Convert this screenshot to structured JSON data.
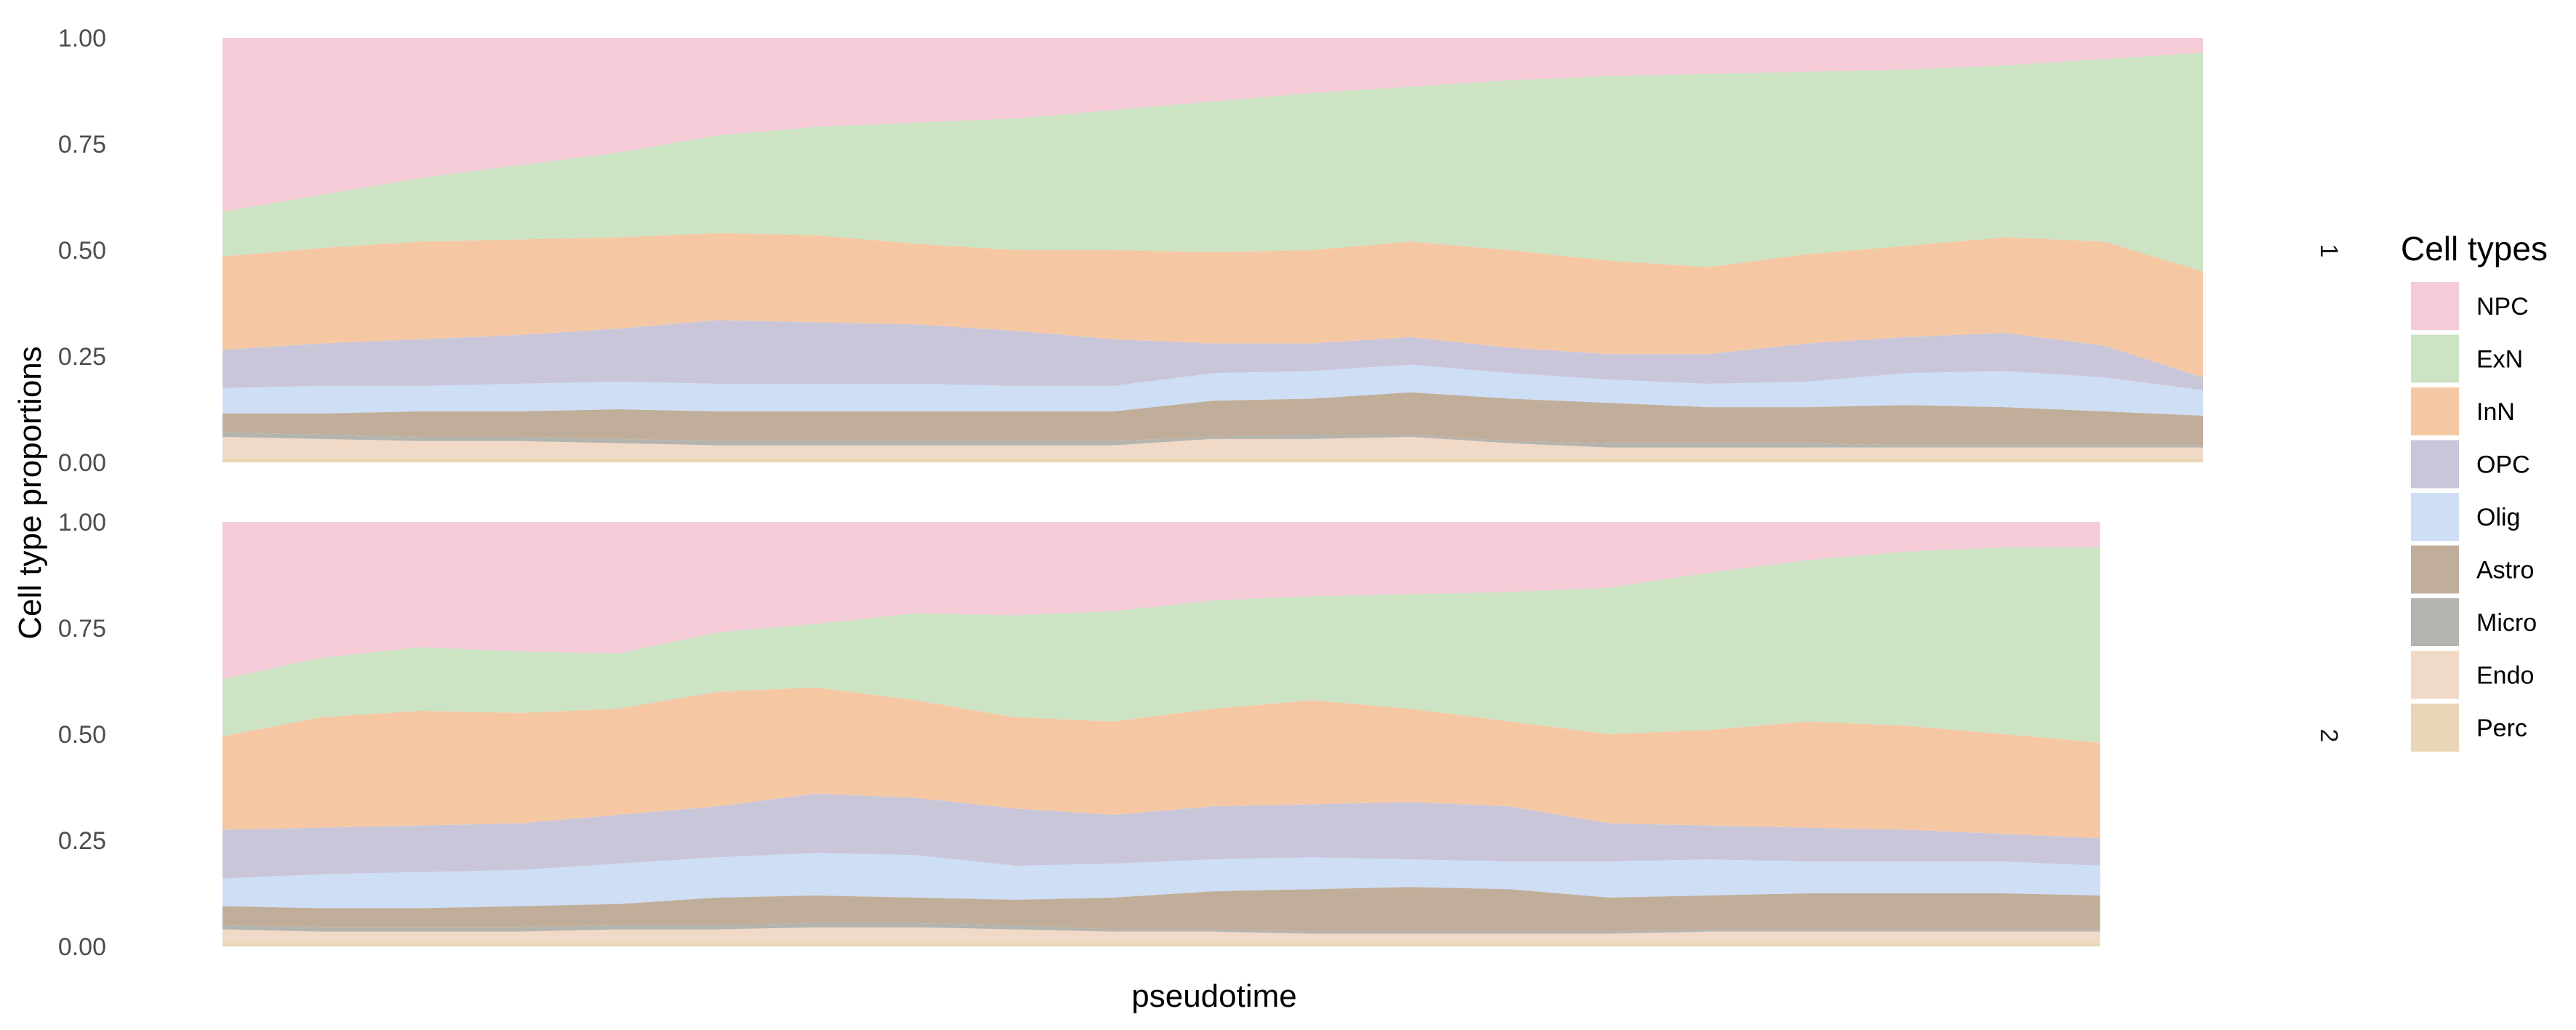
{
  "chart_data": {
    "type": "area",
    "stacking": "proportion",
    "x_axis_label": "pseudotime",
    "y_axis_label": "Cell type proportions",
    "y_range": [
      0,
      1
    ],
    "y_ticks": [
      "0.00",
      "0.25",
      "0.50",
      "0.75",
      "1.00"
    ],
    "legend": {
      "title": "Cell types",
      "placement": "right",
      "entries": [
        {
          "name": "NPC",
          "color": "#f4cbd7"
        },
        {
          "name": "ExN",
          "color": "#cce3c4"
        },
        {
          "name": "InN",
          "color": "#f5c8a3"
        },
        {
          "name": "OPC",
          "color": "#cac6da"
        },
        {
          "name": "Olig",
          "color": "#cddef5"
        },
        {
          "name": "Astro",
          "color": "#c1ae9a"
        },
        {
          "name": "Micro",
          "color": "#b4b4ae"
        },
        {
          "name": "Endo",
          "color": "#f0d9c6"
        },
        {
          "name": "Perc",
          "color": "#e8d6b6"
        }
      ]
    },
    "panels": [
      {
        "strip_label": "1",
        "x_extent": [
          0,
          1
        ],
        "x": [
          0,
          0.05,
          0.1,
          0.15,
          0.2,
          0.25,
          0.3,
          0.35,
          0.4,
          0.45,
          0.5,
          0.55,
          0.6,
          0.65,
          0.7,
          0.75,
          0.8,
          0.85,
          0.9,
          0.95,
          1.0
        ],
        "boundaries": {
          "Perc": [
            0.01,
            0.01,
            0.01,
            0.01,
            0.01,
            0.01,
            0.01,
            0.01,
            0.01,
            0.01,
            0.01,
            0.01,
            0.01,
            0.01,
            0.01,
            0.01,
            0.01,
            0.01,
            0.01,
            0.01,
            0.01
          ],
          "Endo": [
            0.06,
            0.055,
            0.05,
            0.05,
            0.045,
            0.04,
            0.04,
            0.04,
            0.04,
            0.04,
            0.055,
            0.055,
            0.06,
            0.045,
            0.035,
            0.035,
            0.035,
            0.035,
            0.035,
            0.035,
            0.035
          ],
          "Micro": [
            0.07,
            0.065,
            0.06,
            0.06,
            0.055,
            0.05,
            0.05,
            0.05,
            0.05,
            0.05,
            0.06,
            0.065,
            0.065,
            0.05,
            0.045,
            0.045,
            0.045,
            0.04,
            0.04,
            0.04,
            0.04
          ],
          "Astro": [
            0.115,
            0.115,
            0.12,
            0.12,
            0.125,
            0.12,
            0.12,
            0.12,
            0.12,
            0.12,
            0.145,
            0.15,
            0.165,
            0.15,
            0.14,
            0.13,
            0.13,
            0.135,
            0.13,
            0.12,
            0.11
          ],
          "Olig": [
            0.175,
            0.18,
            0.18,
            0.185,
            0.19,
            0.185,
            0.185,
            0.185,
            0.18,
            0.18,
            0.21,
            0.215,
            0.23,
            0.21,
            0.195,
            0.185,
            0.19,
            0.21,
            0.215,
            0.2,
            0.17
          ],
          "OPC": [
            0.265,
            0.28,
            0.29,
            0.3,
            0.315,
            0.335,
            0.33,
            0.325,
            0.31,
            0.29,
            0.28,
            0.28,
            0.295,
            0.27,
            0.255,
            0.255,
            0.28,
            0.295,
            0.305,
            0.275,
            0.2
          ],
          "InN": [
            0.485,
            0.505,
            0.52,
            0.525,
            0.53,
            0.54,
            0.535,
            0.515,
            0.5,
            0.5,
            0.495,
            0.5,
            0.52,
            0.5,
            0.475,
            0.46,
            0.49,
            0.51,
            0.53,
            0.52,
            0.45
          ],
          "ExN": [
            0.59,
            0.63,
            0.67,
            0.7,
            0.73,
            0.77,
            0.79,
            0.8,
            0.81,
            0.83,
            0.85,
            0.87,
            0.885,
            0.9,
            0.91,
            0.915,
            0.92,
            0.925,
            0.935,
            0.95,
            0.965
          ],
          "NPC": [
            1,
            1,
            1,
            1,
            1,
            1,
            1,
            1,
            1,
            1,
            1,
            1,
            1,
            1,
            1,
            1,
            1,
            1,
            1,
            1,
            1
          ]
        }
      },
      {
        "strip_label": "2",
        "x_extent": [
          0,
          0.948
        ],
        "x": [
          0,
          0.05,
          0.1,
          0.15,
          0.2,
          0.25,
          0.3,
          0.35,
          0.4,
          0.45,
          0.5,
          0.55,
          0.6,
          0.65,
          0.7,
          0.75,
          0.8,
          0.85,
          0.9,
          0.948
        ],
        "boundaries": {
          "Perc": [
            0.01,
            0.01,
            0.01,
            0.01,
            0.01,
            0.01,
            0.01,
            0.01,
            0.01,
            0.01,
            0.01,
            0.01,
            0.01,
            0.01,
            0.01,
            0.01,
            0.01,
            0.01,
            0.01,
            0.01
          ],
          "Endo": [
            0.04,
            0.035,
            0.035,
            0.035,
            0.04,
            0.04,
            0.045,
            0.045,
            0.04,
            0.035,
            0.035,
            0.03,
            0.03,
            0.03,
            0.03,
            0.035,
            0.035,
            0.035,
            0.035,
            0.035
          ],
          "Micro": [
            0.05,
            0.045,
            0.045,
            0.045,
            0.05,
            0.05,
            0.055,
            0.055,
            0.05,
            0.04,
            0.04,
            0.035,
            0.035,
            0.035,
            0.035,
            0.04,
            0.04,
            0.04,
            0.04,
            0.04
          ],
          "Astro": [
            0.095,
            0.09,
            0.09,
            0.095,
            0.1,
            0.115,
            0.12,
            0.115,
            0.11,
            0.115,
            0.13,
            0.135,
            0.14,
            0.135,
            0.115,
            0.12,
            0.125,
            0.125,
            0.125,
            0.12
          ],
          "Olig": [
            0.16,
            0.17,
            0.175,
            0.18,
            0.195,
            0.21,
            0.22,
            0.215,
            0.19,
            0.195,
            0.205,
            0.21,
            0.205,
            0.2,
            0.2,
            0.205,
            0.2,
            0.2,
            0.2,
            0.19
          ],
          "OPC": [
            0.275,
            0.28,
            0.285,
            0.29,
            0.31,
            0.33,
            0.36,
            0.35,
            0.325,
            0.31,
            0.33,
            0.335,
            0.34,
            0.33,
            0.29,
            0.285,
            0.28,
            0.275,
            0.265,
            0.255
          ],
          "InN": [
            0.495,
            0.54,
            0.555,
            0.55,
            0.56,
            0.6,
            0.61,
            0.58,
            0.54,
            0.53,
            0.56,
            0.58,
            0.56,
            0.53,
            0.5,
            0.51,
            0.53,
            0.52,
            0.5,
            0.48
          ],
          "ExN": [
            0.63,
            0.68,
            0.705,
            0.695,
            0.69,
            0.74,
            0.76,
            0.785,
            0.78,
            0.79,
            0.815,
            0.825,
            0.83,
            0.835,
            0.845,
            0.88,
            0.91,
            0.93,
            0.94,
            0.94
          ],
          "NPC": [
            1,
            1,
            1,
            1,
            1,
            1,
            1,
            1,
            1,
            1,
            1,
            1,
            1,
            1,
            1,
            1,
            1,
            1,
            1,
            1
          ]
        }
      }
    ]
  }
}
